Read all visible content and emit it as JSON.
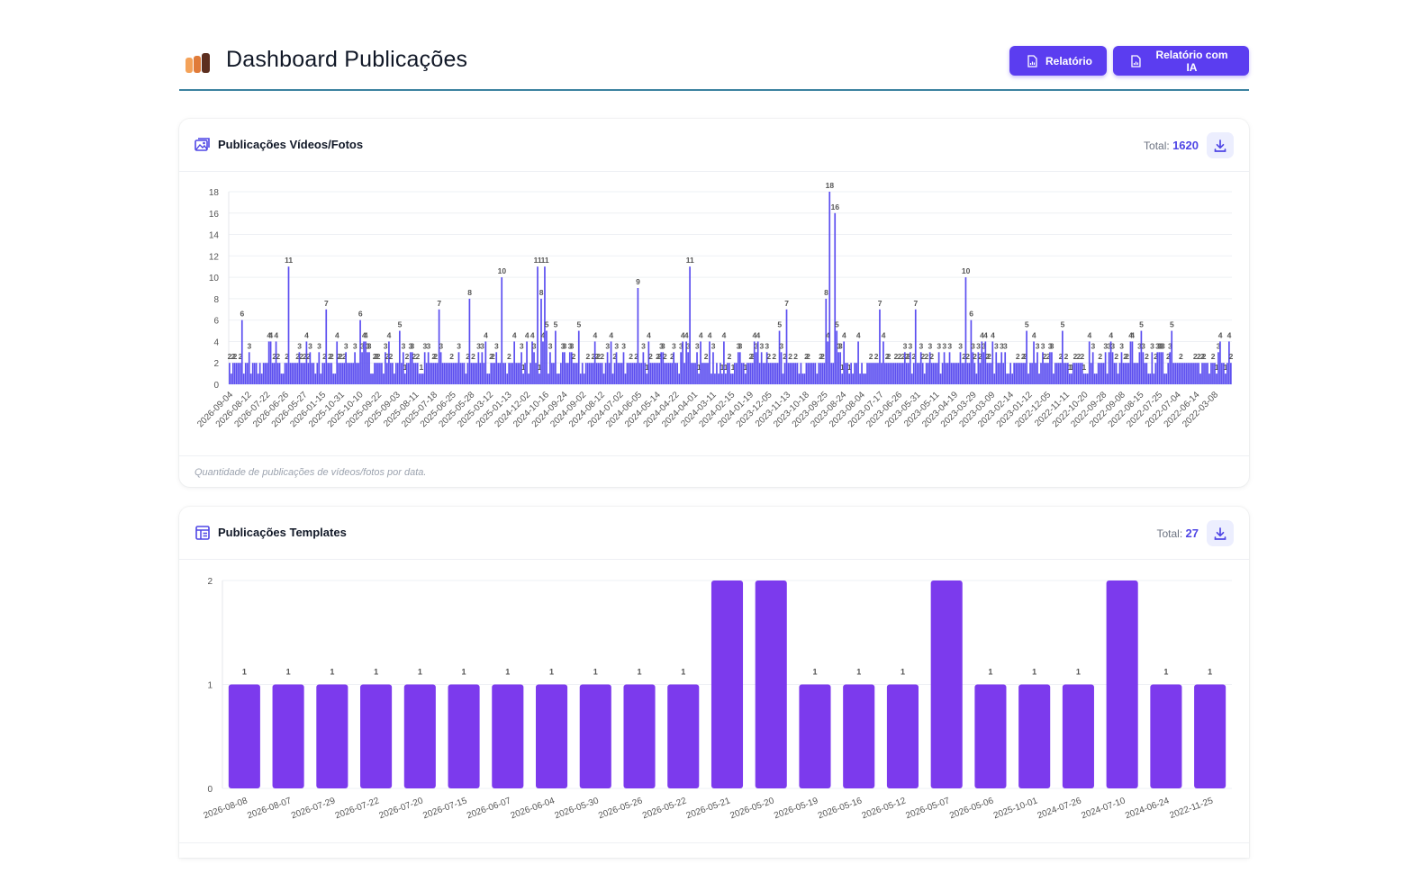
{
  "header": {
    "title": "Dashboard Publicações",
    "report_button": "Relatório",
    "report_ai_button": "Relatório com IA",
    "logo_colors": [
      "#f4a259",
      "#e07b39",
      "#5c2e1f"
    ]
  },
  "videos_card": {
    "title": "Publicações Vídeos/Fotos",
    "total_label": "Total:",
    "total_value": "1620",
    "footer": "Quantidade de publicações de vídeos/fotos por data.",
    "icon": "image-gallery-icon",
    "download_icon": "download-icon"
  },
  "templates_card": {
    "title": "Publicações Templates",
    "total_label": "Total:",
    "total_value": "27",
    "icon": "template-layout-icon",
    "download_icon": "download-icon"
  },
  "chart_data": [
    {
      "type": "bar",
      "color": "#5b4ef0",
      "ylim": [
        0,
        18
      ],
      "yticks": [
        0,
        2,
        4,
        6,
        8,
        10,
        12,
        14,
        16,
        18
      ],
      "categories": [
        "2026-09-04",
        "2026-08-12",
        "2026-07-22",
        "2026-06-26",
        "2026-05-27",
        "2026-01-15",
        "2025-10-31",
        "2025-10-10",
        "2025-09-22",
        "2025-09-03",
        "2025-08-11",
        "2025-07-18",
        "2025-06-25",
        "2025-05-28",
        "2025-03-12",
        "2025-01-13",
        "2024-12-02",
        "2024-10-16",
        "2024-09-24",
        "2024-09-02",
        "2024-08-12",
        "2024-07-02",
        "2024-06-05",
        "2024-05-14",
        "2024-04-22",
        "2024-04-01",
        "2024-03-11",
        "2024-02-15",
        "2024-01-19",
        "2023-12-05",
        "2023-11-13",
        "2023-10-18",
        "2023-09-25",
        "2023-08-24",
        "2023-08-04",
        "2023-07-17",
        "2023-06-26",
        "2023-05-31",
        "2023-05-11",
        "2023-04-19",
        "2023-03-29",
        "2023-03-09",
        "2023-02-14",
        "2023-01-12",
        "2022-12-05",
        "2022-11-11",
        "2022-10-20",
        "2022-09-28",
        "2022-09-08",
        "2022-08-15",
        "2022-07-25",
        "2022-07-04",
        "2022-06-14",
        "2022-03-08"
      ],
      "peaks": [
        {
          "pos": 0.012,
          "value": 6
        },
        {
          "pos": 0.059,
          "value": 11
        },
        {
          "pos": 0.096,
          "value": 7
        },
        {
          "pos": 0.131,
          "value": 6
        },
        {
          "pos": 0.21,
          "value": 7
        },
        {
          "pos": 0.24,
          "value": 8
        },
        {
          "pos": 0.272,
          "value": 10
        },
        {
          "pos": 0.308,
          "value": 11
        },
        {
          "pos": 0.311,
          "value": 8
        },
        {
          "pos": 0.314,
          "value": 11
        },
        {
          "pos": 0.408,
          "value": 9
        },
        {
          "pos": 0.459,
          "value": 11
        },
        {
          "pos": 0.556,
          "value": 7
        },
        {
          "pos": 0.596,
          "value": 8
        },
        {
          "pos": 0.599,
          "value": 18
        },
        {
          "pos": 0.604,
          "value": 16
        },
        {
          "pos": 0.65,
          "value": 7
        },
        {
          "pos": 0.686,
          "value": 7
        },
        {
          "pos": 0.735,
          "value": 10
        },
        {
          "pos": 0.74,
          "value": 6
        }
      ]
    },
    {
      "type": "bar",
      "color": "#7c3aed",
      "ylim": [
        0,
        2
      ],
      "yticks": [
        0,
        1,
        2
      ],
      "categories": [
        "2026-08-08",
        "2026-08-07",
        "2026-07-29",
        "2026-07-22",
        "2026-07-20",
        "2026-07-15",
        "2026-06-07",
        "2026-06-04",
        "2026-05-30",
        "2026-05-26",
        "2026-05-22",
        "2026-05-21",
        "2026-05-20",
        "2026-05-19",
        "2026-05-16",
        "2026-05-12",
        "2026-05-07",
        "2026-05-06",
        "2025-10-01",
        "2024-07-26",
        "2024-07-10",
        "2024-06-24",
        "2022-11-25"
      ],
      "values": [
        1,
        1,
        1,
        1,
        1,
        1,
        1,
        1,
        1,
        1,
        1,
        2,
        2,
        1,
        1,
        1,
        2,
        1,
        1,
        1,
        2,
        1,
        1
      ]
    }
  ]
}
